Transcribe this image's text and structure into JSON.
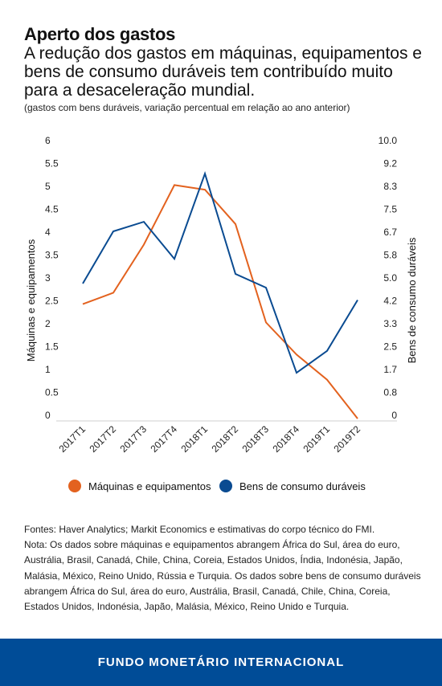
{
  "header": {
    "title": "Aperto dos gastos",
    "subtitle": "A redução dos gastos em máquinas, equipamentos e bens de consumo duráveis tem contribuído muito para a desaceleração mundial.",
    "unit_note": "(gastos com bens duráveis, variação percentual em relação ao ano anterior)"
  },
  "chart_data": {
    "type": "line",
    "categories": [
      "2017T1",
      "2017T2",
      "2017T3",
      "2017T4",
      "2018T1",
      "2018T2",
      "2018T3",
      "2018T4",
      "2019T1",
      "2019T2"
    ],
    "series": [
      {
        "name": "Máquinas e equipamentos",
        "axis": "left",
        "color": "#e3621f",
        "values": [
          2.55,
          2.8,
          3.85,
          5.15,
          5.05,
          4.3,
          2.15,
          1.45,
          0.9,
          0.05
        ]
      },
      {
        "name": "Bens de consumo duráveis",
        "axis": "right",
        "color": "#0a4b91",
        "values": [
          5.0,
          6.9,
          7.25,
          5.9,
          9.0,
          5.35,
          4.85,
          1.75,
          2.55,
          4.4
        ]
      }
    ],
    "ylabel_left": "Máquinas e equipamentos",
    "ylabel_right": "Bens de consumo duráveis",
    "ylim_left": [
      0,
      6
    ],
    "ylim_right": [
      0,
      10
    ],
    "left_ticks": [
      "0",
      "0.5",
      "1",
      "1.5",
      "2",
      "2.5",
      "3",
      "3.5",
      "4",
      "4.5",
      "5",
      "5.5",
      "6"
    ],
    "right_ticks": [
      "0",
      "0.8",
      "1.7",
      "2.5",
      "3.3",
      "4.2",
      "5.0",
      "5.8",
      "6.7",
      "7.5",
      "8.3",
      "9.2",
      "10.0"
    ],
    "grid": false,
    "legend_position": "bottom"
  },
  "sources": {
    "line1": "Fontes: Haver Analytics; Markit Economics e estimativas do corpo técnico do FMI.",
    "line2": "Nota: Os dados sobre máquinas e equipamentos abrangem África do Sul, área do euro, Austrália, Brasil, Canadá, Chile, China, Coreia, Estados Unidos, Índia, Indonésia, Japão, Malásia, México, Reino Unido, Rússia e Turquia. Os dados sobre bens de consumo duráveis abrangem África do Sul, área do euro, Austrália, Brasil, Canadá, Chile, China, Coreia, Estados Unidos, Indonésia, Japão, Malásia, México, Reino Unido e Turquia."
  },
  "footer": {
    "org_name": "FUNDO MONETÁRIO INTERNACIONAL",
    "background": "#004c97"
  }
}
